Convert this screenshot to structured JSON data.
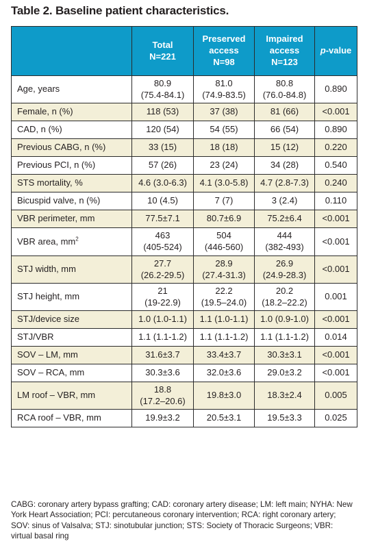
{
  "title": "Table 2. Baseline patient characteristics.",
  "header": {
    "col1": "",
    "col2_line1": "Total",
    "col2_line2": "N=221",
    "col3_line1": "Preserved",
    "col3_line2": "access",
    "col3_line3": "N=98",
    "col4_line1": "Impaired",
    "col4_line2": "access",
    "col4_line3": "N=123",
    "col5_p": "p",
    "col5_rest": "-value"
  },
  "rows": [
    {
      "label": "Age, years",
      "total": "80.9",
      "total2": "(75.4-84.1)",
      "pres": "81.0",
      "pres2": "(74.9-83.5)",
      "imp": "80.8",
      "imp2": "(76.0-84.8)",
      "p": "0.890"
    },
    {
      "label": "Female, n (%)",
      "total": "118 (53)",
      "total2": "",
      "pres": "37 (38)",
      "pres2": "",
      "imp": "81 (66)",
      "imp2": "",
      "p": "<0.001"
    },
    {
      "label": "CAD, n (%)",
      "total": "120 (54)",
      "total2": "",
      "pres": "54 (55)",
      "pres2": "",
      "imp": "66 (54)",
      "imp2": "",
      "p": "0.890"
    },
    {
      "label": "Previous CABG, n (%)",
      "total": "33 (15)",
      "total2": "",
      "pres": "18 (18)",
      "pres2": "",
      "imp": "15 (12)",
      "imp2": "",
      "p": "0.220"
    },
    {
      "label": "Previous PCI, n (%)",
      "total": "57 (26)",
      "total2": "",
      "pres": "23 (24)",
      "pres2": "",
      "imp": "34 (28)",
      "imp2": "",
      "p": "0.540"
    },
    {
      "label": "STS mortality, %",
      "total": "4.6 (3.0-6.3)",
      "total2": "",
      "pres": "4.1 (3.0-5.8)",
      "pres2": "",
      "imp": "4.7 (2.8-7.3)",
      "imp2": "",
      "p": "0.240"
    },
    {
      "label": "Bicuspid valve, n (%)",
      "total": "10 (4.5)",
      "total2": "",
      "pres": "7 (7)",
      "pres2": "",
      "imp": "3 (2.4)",
      "imp2": "",
      "p": "0.110"
    },
    {
      "label": "VBR perimeter, mm",
      "total": "77.5±7.1",
      "total2": "",
      "pres": "80.7±6.9",
      "pres2": "",
      "imp": "75.2±6.4",
      "imp2": "",
      "p": "<0.001"
    },
    {
      "label": "VBR area, mm",
      "label_sup": "2",
      "total": "463",
      "total2": "(405-524)",
      "pres": "504",
      "pres2": "(446-560)",
      "imp": "444",
      "imp2": "(382-493)",
      "p": "<0.001"
    },
    {
      "label": "STJ width, mm",
      "total": "27.7",
      "total2": "(26.2-29.5)",
      "pres": "28.9",
      "pres2": "(27.4-31.3)",
      "imp": "26.9",
      "imp2": "(24.9-28.3)",
      "p": "<0.001"
    },
    {
      "label": "STJ height, mm",
      "total": "21",
      "total2": "(19-22.9)",
      "pres": "22.2",
      "pres2": "(19.5–24.0)",
      "imp": "20.2",
      "imp2": "(18.2–22.2)",
      "p": "0.001"
    },
    {
      "label": "STJ/device size",
      "total": "1.0 (1.0-1.1)",
      "total2": "",
      "pres": "1.1 (1.0-1.1)",
      "pres2": "",
      "imp": "1.0 (0.9-1.0)",
      "imp2": "",
      "p": "<0.001"
    },
    {
      "label": "STJ/VBR",
      "total": "1.1 (1.1-1.2)",
      "total2": "",
      "pres": "1.1 (1.1-1.2)",
      "pres2": "",
      "imp": "1.1 (1.1-1.2)",
      "imp2": "",
      "p": "0.014"
    },
    {
      "label": "SOV – LM, mm",
      "total": "31.6±3.7",
      "total2": "",
      "pres": "33.4±3.7",
      "pres2": "",
      "imp": "30.3±3.1",
      "imp2": "",
      "p": "<0.001"
    },
    {
      "label": "SOV – RCA, mm",
      "total": "30.3±3.6",
      "total2": "",
      "pres": "32.0±3.6",
      "pres2": "",
      "imp": "29.0±3.2",
      "imp2": "",
      "p": "<0.001"
    },
    {
      "label": "LM roof – VBR, mm",
      "total": "18.8",
      "total2": "(17.2–20.6)",
      "pres": "19.8±3.0",
      "pres2": "",
      "imp": "18.3±2.4",
      "imp2": "",
      "p": "0.005"
    },
    {
      "label": "RCA roof – VBR, mm",
      "total": "19.9±3.2",
      "total2": "",
      "pres": "20.5±3.1",
      "pres2": "",
      "imp": "19.5±3.3",
      "imp2": "",
      "p": "0.025"
    }
  ],
  "footnote": "CABG: coronary artery bypass grafting; CAD: coronary artery disease; LM: left main; NYHA: New York Heart Association; PCI: percutaneous coronary intervention; RCA: right coronary artery; SOV: sinus of Valsalva; STJ: sinotubular junction; STS: Society of Thoracic Surgeons; VBR: virtual basal ring",
  "colors": {
    "header_bg": "#0e9bc9",
    "row_alt_bg": "#f3efd8"
  }
}
